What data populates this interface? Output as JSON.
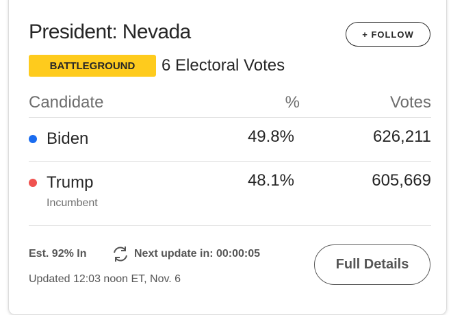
{
  "header": {
    "title": "President: Nevada",
    "follow": "+ FOLLOW",
    "badge": "BATTLEGROUND",
    "electoral_votes": "6 Electoral Votes"
  },
  "table": {
    "columns": [
      "Candidate",
      "%",
      "Votes"
    ],
    "rows": [
      {
        "name": "Biden",
        "note": null,
        "color": "#1a6cf0",
        "percent": "49.8%",
        "votes": "626,211"
      },
      {
        "name": "Trump",
        "note": "Incumbent",
        "color": "#f0524f",
        "percent": "48.1%",
        "votes": "605,669"
      }
    ]
  },
  "footer": {
    "estimate": "Est. 92% In",
    "next_update": "Next update in: 00:00:05",
    "updated": "Updated 12:03 noon ET, Nov. 6",
    "details_button": "Full Details"
  }
}
